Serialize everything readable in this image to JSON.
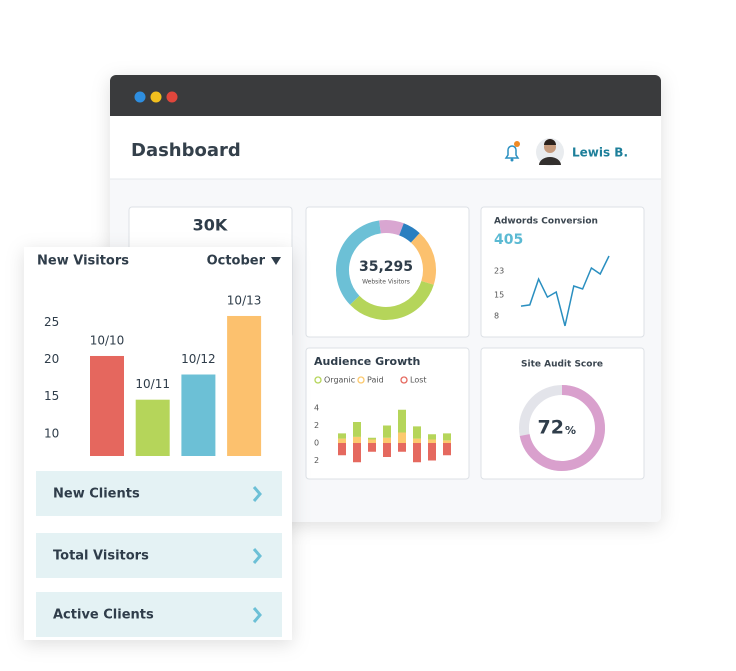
{
  "window": {
    "title": "Dashboard",
    "user": "Lewis B."
  },
  "stat_card": {
    "value": "30K"
  },
  "visitors_donut": {
    "type": "pie",
    "total": "35,295",
    "caption": "Website Visitors",
    "values": [
      8,
      6,
      18,
      33,
      35
    ],
    "colors": [
      "#d9a6d1",
      "#2a7fc0",
      "#fcc16e",
      "#b5d55a",
      "#6cc0d6"
    ]
  },
  "adwords": {
    "type": "line",
    "title": "Adwords Conversion",
    "headline": 405,
    "values": [
      11.3,
      11.7,
      20.3,
      14.3,
      16,
      4.7,
      18,
      17,
      24,
      22,
      28
    ],
    "ylim": [
      3,
      29
    ],
    "yticks": [
      8,
      15,
      23
    ],
    "color": "#2a8fc0"
  },
  "audience": {
    "type": "bar",
    "stacked": true,
    "title": "Audience Growth",
    "series": [
      {
        "name": "Organic",
        "color": "#b5d55a",
        "values": [
          0.6,
          1.7,
          0.2,
          1.4,
          2.6,
          1.4,
          0.6,
          0.8
        ]
      },
      {
        "name": "Paid",
        "color": "#fcc96e",
        "values": [
          0.5,
          0.7,
          0.4,
          0.6,
          1.2,
          0.5,
          0.4,
          0.3
        ]
      },
      {
        "name": "Lost",
        "color": "#e5695f",
        "values": [
          -1.4,
          -2.2,
          -1.0,
          -1.6,
          -1.0,
          -2.2,
          -2.0,
          -1.4
        ]
      }
    ],
    "ylim": [
      -2.5,
      4.5
    ],
    "yticks": [
      4,
      2,
      0,
      {
        "value": -2,
        "label": "2"
      }
    ]
  },
  "site_audit": {
    "title": "Site Audit Score",
    "score": 72,
    "unit": "%",
    "color": "#d9a0cd"
  },
  "new_visitors": {
    "type": "bar",
    "title": "New Visitors",
    "period": "October",
    "categories": [
      "10/10",
      "10/11",
      "10/12",
      "10/13"
    ],
    "values": [
      20.5,
      14.6,
      18,
      25.9
    ],
    "colors": [
      "#e5675e",
      "#b5d55a",
      "#6cc0d6",
      "#fcc16e"
    ],
    "ylim": [
      7,
      29
    ],
    "yticks": [
      10,
      15,
      20,
      25
    ]
  },
  "menu": [
    "New Clients",
    "Total Visitors",
    "Active Clients"
  ]
}
